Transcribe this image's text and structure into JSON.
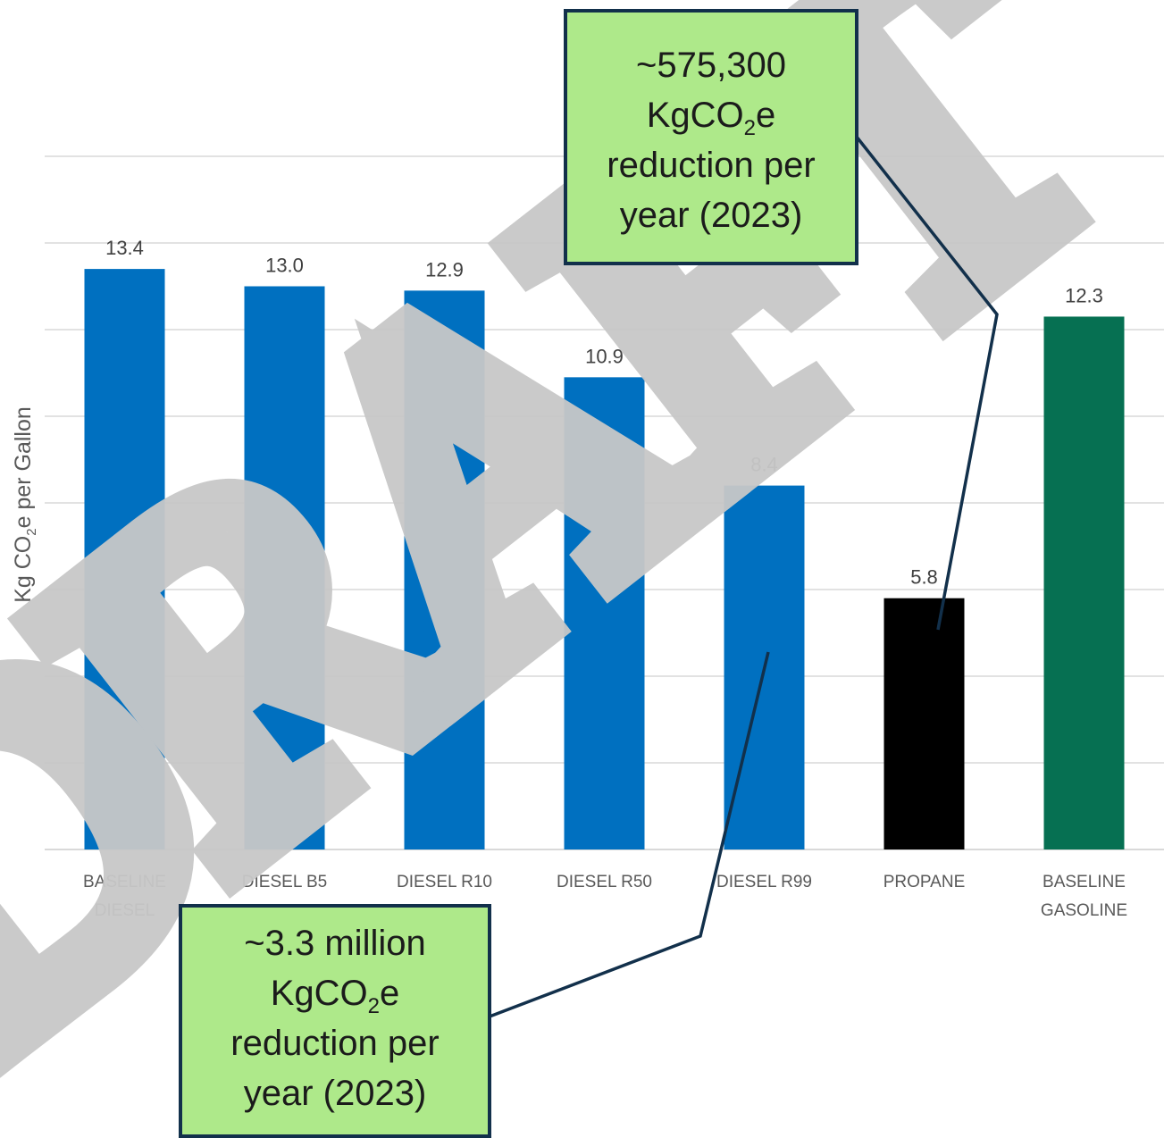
{
  "chart_data": {
    "type": "bar",
    "categories": [
      "BASELINE DIESEL",
      "DIESEL B5",
      "DIESEL R10",
      "DIESEL R50",
      "DIESEL R99",
      "PROPANE",
      "BASELINE GASOLINE"
    ],
    "values": [
      13.4,
      13.0,
      12.9,
      10.9,
      8.4,
      5.8,
      12.3
    ],
    "value_labels": [
      "13.4",
      "13.0",
      "12.9",
      "10.9",
      "8.4",
      "5.8",
      "12.3"
    ],
    "category_lines": [
      [
        "BASELINE",
        "DIESEL"
      ],
      [
        "DIESEL B5"
      ],
      [
        "DIESEL R10"
      ],
      [
        "DIESEL R50"
      ],
      [
        "DIESEL R99"
      ],
      [
        "PROPANE"
      ],
      [
        "BASELINE",
        "GASOLINE"
      ]
    ],
    "bar_colors": [
      "#0070c0",
      "#0070c0",
      "#0070c0",
      "#0070c0",
      "#0070c0",
      "#000000",
      "#067052"
    ],
    "ylabel": {
      "pre": "Kg CO",
      "sub": "2",
      "post": "e per Gallon"
    },
    "ylim": [
      0,
      16
    ],
    "gridline_step": 2,
    "grid": true,
    "gridline_color": "#d9d9d9",
    "legend": "none"
  },
  "watermark": {
    "text": "DRAFT",
    "color": "#c8c8c8"
  },
  "callouts": {
    "top": {
      "lines": [
        "~575,300",
        "KgCO|2|e",
        "reduction per",
        "year (2023)"
      ],
      "fill": "#aee98a",
      "border": "#12304b",
      "points_to": "PROPANE"
    },
    "bottom": {
      "lines": [
        "~3.3 million",
        "KgCO|2|e",
        "reduction per",
        "year (2023)"
      ],
      "fill": "#aee98a",
      "border": "#12304b",
      "points_to": "DIESEL R99"
    }
  }
}
